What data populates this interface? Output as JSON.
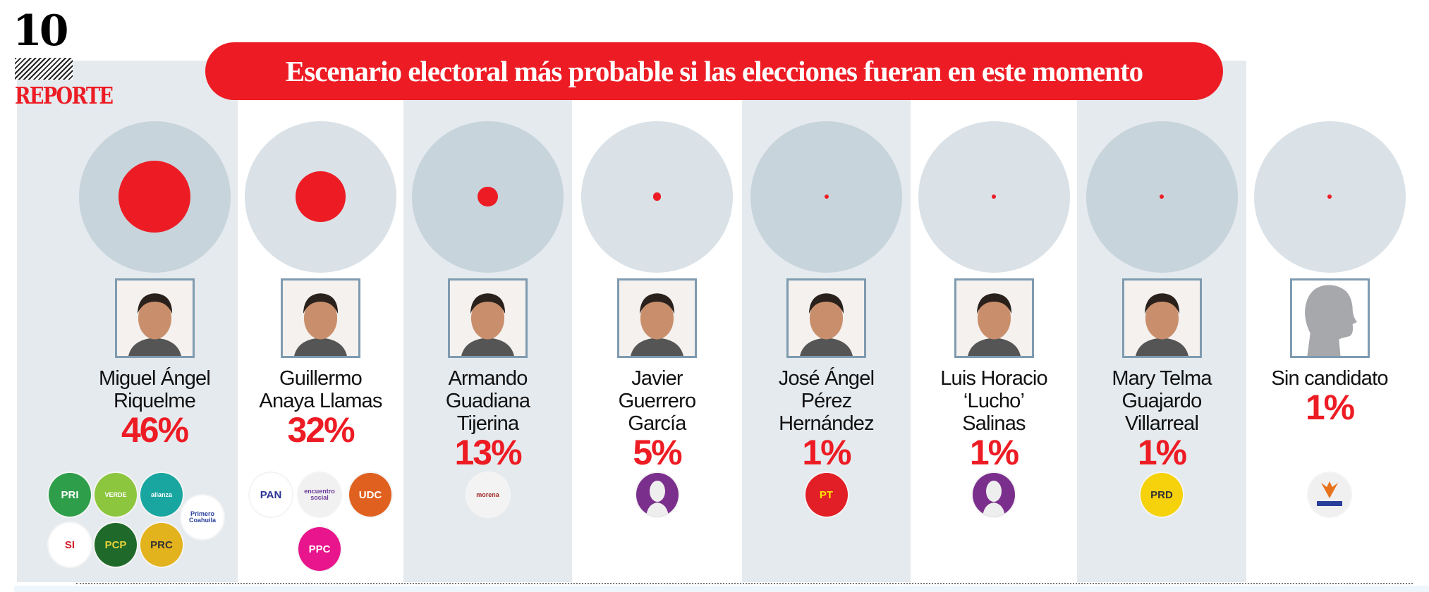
{
  "header": {
    "issue_number": "10",
    "section": "REPORTE"
  },
  "colors": {
    "accent": "#ed1c24",
    "column_gray": "#e5eaee",
    "ring_dark": "#c8d4dc",
    "ring_light": "#dae2e7"
  },
  "chart_data": {
    "type": "bubble",
    "title": "Escenario electoral más probable si las elecciones fueran en este momento",
    "unit": "%",
    "candidates": [
      {
        "name_lines": [
          "Miguel Ángel",
          "Riquelme"
        ],
        "value": 46,
        "label": "46%",
        "photo": "candidate-photo",
        "parties": [
          {
            "label": "PRI",
            "bg": "#2e9e4a",
            "fg": "#fff"
          },
          {
            "label": "VERDE",
            "bg": "#8cc63f",
            "fg": "#fff"
          },
          {
            "label": "alianza",
            "bg": "#1aa6a0",
            "fg": "#fff"
          },
          {
            "label": "Primero Coahuila",
            "bg": "#ffffff",
            "fg": "#2a3f9a"
          },
          {
            "label": "SI",
            "bg": "#ffffff",
            "fg": "#d0202a"
          },
          {
            "label": "PCP",
            "bg": "#1f6a2a",
            "fg": "#e8d23a"
          },
          {
            "label": "PRC",
            "bg": "#e3b31e",
            "fg": "#333"
          }
        ]
      },
      {
        "name_lines": [
          "Guillermo",
          "Anaya Llamas"
        ],
        "value": 32,
        "label": "32%",
        "photo": "candidate-photo",
        "parties": [
          {
            "label": "PAN",
            "bg": "#ffffff",
            "fg": "#2a3492"
          },
          {
            "label": "encuentro social",
            "bg": "#f1f1f1",
            "fg": "#6a3a9a"
          },
          {
            "label": "UDC",
            "bg": "#e0601f",
            "fg": "#fff"
          },
          {
            "label": "PPC",
            "bg": "#e8158c",
            "fg": "#fff"
          }
        ]
      },
      {
        "name_lines": [
          "Armando",
          "Guadiana",
          "Tijerina"
        ],
        "value": 13,
        "label": "13%",
        "photo": "candidate-photo",
        "parties": [
          {
            "label": "morena",
            "bg": "#f3f3f3",
            "fg": "#a0282a"
          }
        ]
      },
      {
        "name_lines": [
          "Javier",
          "Guerrero",
          "García"
        ],
        "value": 5,
        "label": "5%",
        "photo": "candidate-photo",
        "parties": [
          {
            "label": "",
            "bg": "#7b2f8c",
            "fg": "#fff",
            "kind": "independent"
          }
        ]
      },
      {
        "name_lines": [
          "José Ángel",
          "Pérez",
          "Hernández"
        ],
        "value": 1,
        "label": "1%",
        "photo": "candidate-photo",
        "parties": [
          {
            "label": "PT",
            "bg": "#e21f26",
            "fg": "#ffe600"
          }
        ]
      },
      {
        "name_lines": [
          "Luis Horacio",
          "‘Lucho’",
          "Salinas"
        ],
        "value": 1,
        "label": "1%",
        "photo": "candidate-photo",
        "parties": [
          {
            "label": "",
            "bg": "#7b2f8c",
            "fg": "#fff",
            "kind": "independent"
          }
        ]
      },
      {
        "name_lines": [
          "Mary Telma",
          "Guajardo",
          "Villarreal"
        ],
        "value": 1,
        "label": "1%",
        "photo": "candidate-photo",
        "parties": [
          {
            "label": "PRD",
            "bg": "#f5d20c",
            "fg": "#333"
          }
        ]
      },
      {
        "name_lines": [
          "Sin candidato"
        ],
        "value": 1,
        "label": "1%",
        "photo": "silhouette",
        "parties": [
          {
            "label": "MC",
            "bg": "#f0f0f0",
            "fg": "#e8731e",
            "kind": "mc"
          }
        ]
      }
    ]
  }
}
